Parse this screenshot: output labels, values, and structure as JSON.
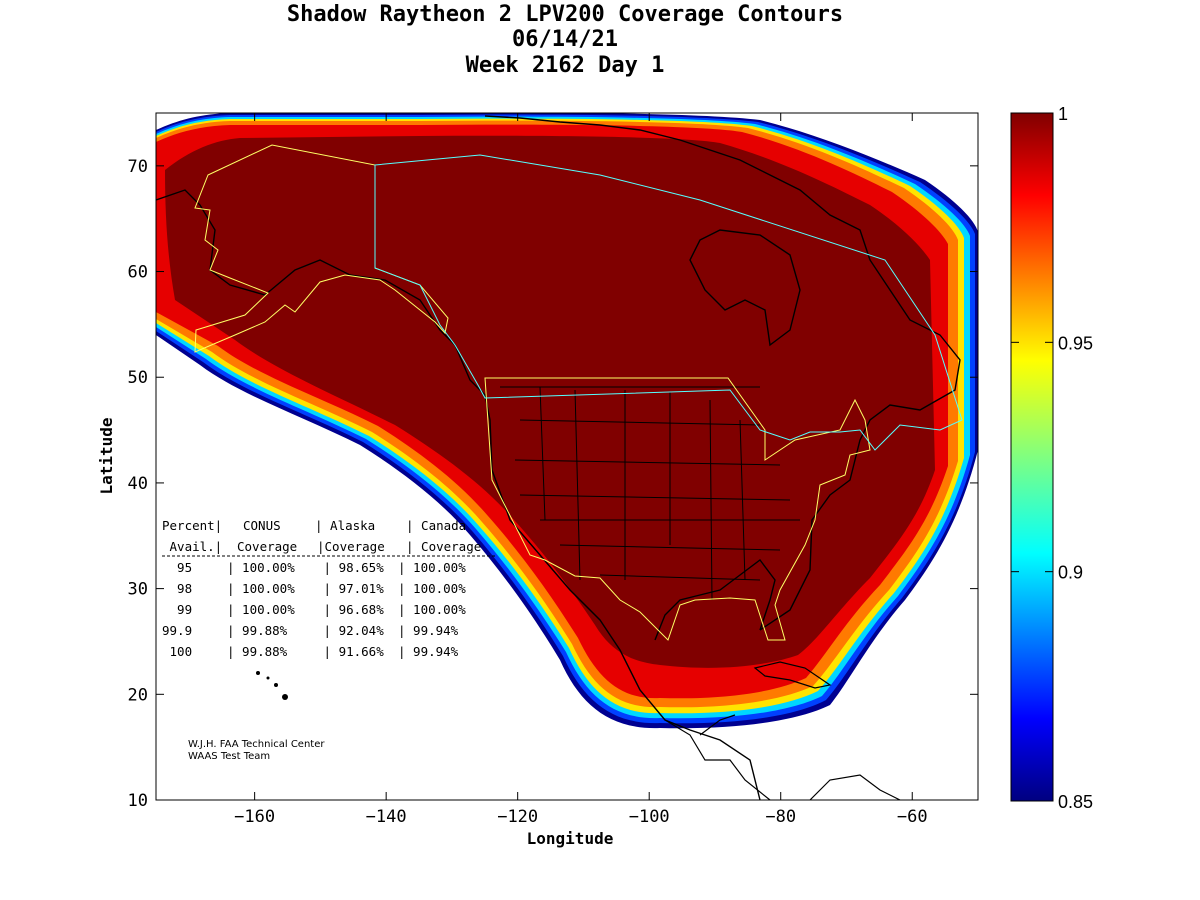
{
  "title": {
    "line1": "Shadow Raytheon 2 LPV200 Coverage Contours",
    "line2": "06/14/21",
    "line3": "Week 2162 Day 1"
  },
  "axes": {
    "xlabel": "Longitude",
    "ylabel": "Latitude",
    "xlim": [
      -175,
      -50
    ],
    "ylim": [
      10,
      75
    ],
    "xticks": [
      -160,
      -140,
      -120,
      -100,
      -80,
      -60
    ],
    "yticks": [
      10,
      20,
      30,
      40,
      50,
      60,
      70
    ]
  },
  "colorbar": {
    "range": [
      0.85,
      1
    ],
    "ticks": [
      "1",
      "0.95",
      "0.9",
      "0.85"
    ],
    "colormap": "jet"
  },
  "table": {
    "header1": [
      "Percent|",
      "CONUS",
      "| Alaska",
      "| Canada"
    ],
    "header2": [
      " Avail.|",
      "Coverage",
      "|Coverage",
      "| Coverage"
    ],
    "rows": [
      [
        "  95",
        "| 100.00%",
        " | 98.65%",
        "| 100.00%"
      ],
      [
        "  98",
        "| 100.00%",
        " | 97.01%",
        "| 100.00%"
      ],
      [
        "  99",
        "| 100.00%",
        " | 96.68%",
        "| 100.00%"
      ],
      [
        "99.9",
        "| 99.88%",
        " | 92.04%",
        "| 99.94%"
      ],
      [
        " 100",
        "| 99.88%",
        " | 91.66%",
        "| 99.94%"
      ]
    ]
  },
  "credit": {
    "line1": "W.J.H. FAA Technical Center",
    "line2": "WAAS Test Team"
  },
  "colors": {
    "core": "#800000",
    "red": "#e60000",
    "orange": "#ff7a00",
    "yellow": "#ffe400",
    "cyan": "#00d8ff",
    "blue": "#0040ff",
    "navy": "#000090",
    "alaska_border": "#ffff66",
    "canada_border": "#55ffff"
  }
}
